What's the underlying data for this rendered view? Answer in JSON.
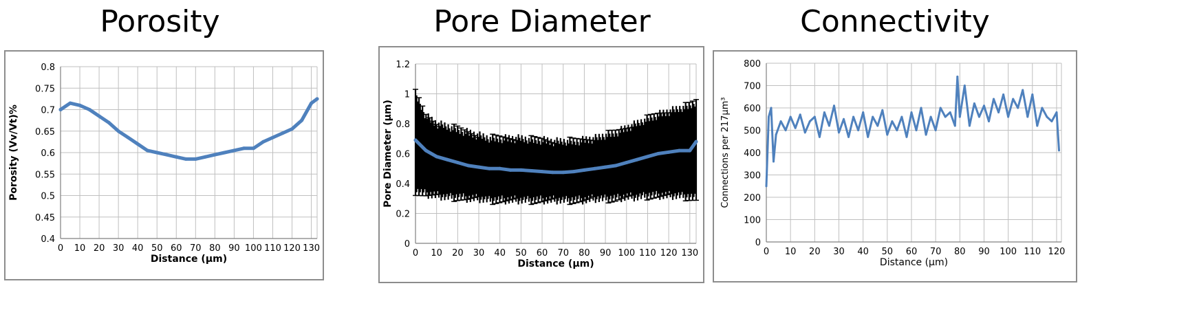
{
  "chart_data": [
    {
      "type": "line",
      "title": "Porosity",
      "xlabel": "Distance (µm)",
      "ylabel": "Porosity (Vv/Vt)%",
      "xlim": [
        0,
        133
      ],
      "ylim": [
        0.4,
        0.8
      ],
      "x_ticks": [
        "0",
        "10",
        "20",
        "30",
        "40",
        "50",
        "60",
        "70",
        "80",
        "90",
        "100",
        "110",
        "120",
        "130"
      ],
      "y_ticks": [
        "0.4",
        "0.45",
        "0.5",
        "0.55",
        "0.6",
        "0.65",
        "0.7",
        "0.75",
        "0.8"
      ],
      "grid": true,
      "series": [
        {
          "color": "#4f81bd",
          "x": [
            0,
            5,
            10,
            15,
            20,
            25,
            30,
            35,
            40,
            45,
            50,
            55,
            60,
            65,
            70,
            75,
            80,
            85,
            90,
            95,
            100,
            105,
            110,
            115,
            120,
            125,
            130,
            133
          ],
          "y": [
            0.7,
            0.715,
            0.71,
            0.7,
            0.685,
            0.67,
            0.65,
            0.635,
            0.62,
            0.605,
            0.6,
            0.595,
            0.59,
            0.585,
            0.585,
            0.59,
            0.595,
            0.6,
            0.605,
            0.61,
            0.61,
            0.625,
            0.635,
            0.645,
            0.655,
            0.675,
            0.715,
            0.725
          ]
        }
      ]
    },
    {
      "type": "line",
      "title": "Pore Diameter",
      "xlabel": "Distance (µm)",
      "ylabel": "Pore Diameter (µm)",
      "xlim": [
        0,
        133
      ],
      "ylim": [
        0,
        1.2
      ],
      "x_ticks": [
        "0",
        "10",
        "20",
        "30",
        "40",
        "50",
        "60",
        "70",
        "80",
        "90",
        "100",
        "110",
        "120",
        "130"
      ],
      "y_ticks": [
        "0",
        "0.2",
        "0.4",
        "0.6",
        "0.8",
        "1",
        "1.2"
      ],
      "grid": true,
      "error_bars": true,
      "series": [
        {
          "color": "#4f81bd",
          "x": [
            0,
            5,
            10,
            15,
            20,
            25,
            30,
            35,
            40,
            45,
            50,
            55,
            60,
            65,
            70,
            75,
            80,
            85,
            90,
            95,
            100,
            105,
            110,
            115,
            120,
            125,
            130,
            133
          ],
          "y": [
            0.69,
            0.62,
            0.58,
            0.56,
            0.54,
            0.52,
            0.51,
            0.5,
            0.5,
            0.49,
            0.49,
            0.485,
            0.48,
            0.475,
            0.475,
            0.48,
            0.49,
            0.5,
            0.51,
            0.52,
            0.54,
            0.56,
            0.58,
            0.6,
            0.61,
            0.62,
            0.62,
            0.68
          ],
          "error_low": [
            0.35,
            0.33,
            0.32,
            0.31,
            0.31,
            0.3,
            0.3,
            0.29,
            0.29,
            0.29,
            0.29,
            0.29,
            0.29,
            0.29,
            0.29,
            0.29,
            0.29,
            0.3,
            0.3,
            0.3,
            0.31,
            0.31,
            0.32,
            0.32,
            0.32,
            0.32,
            0.31,
            0.3
          ],
          "error_high": [
            1.0,
            0.85,
            0.8,
            0.78,
            0.76,
            0.74,
            0.72,
            0.7,
            0.7,
            0.7,
            0.7,
            0.69,
            0.69,
            0.68,
            0.68,
            0.68,
            0.69,
            0.7,
            0.72,
            0.74,
            0.77,
            0.8,
            0.83,
            0.86,
            0.88,
            0.9,
            0.92,
            0.95
          ]
        }
      ]
    },
    {
      "type": "line",
      "title": "Connectivity",
      "xlabel": "Distance (µm)",
      "ylabel": "Connections per 217µm³",
      "xlim": [
        0,
        122
      ],
      "ylim": [
        0,
        800
      ],
      "x_ticks": [
        "0",
        "10",
        "20",
        "30",
        "40",
        "50",
        "60",
        "70",
        "80",
        "90",
        "100",
        "110",
        "120"
      ],
      "y_ticks": [
        "0",
        "100",
        "200",
        "300",
        "400",
        "500",
        "600",
        "700",
        "800"
      ],
      "grid": true,
      "series": [
        {
          "color": "#4f81bd",
          "x": [
            0,
            1,
            2,
            3,
            4,
            6,
            8,
            10,
            12,
            14,
            16,
            18,
            20,
            22,
            24,
            26,
            28,
            30,
            32,
            34,
            36,
            38,
            40,
            42,
            44,
            46,
            48,
            50,
            52,
            54,
            56,
            58,
            60,
            62,
            64,
            66,
            68,
            70,
            72,
            74,
            76,
            78,
            79,
            80,
            82,
            84,
            86,
            88,
            90,
            92,
            94,
            96,
            98,
            100,
            102,
            104,
            106,
            108,
            110,
            112,
            114,
            116,
            118,
            120,
            121
          ],
          "y": [
            250,
            560,
            600,
            360,
            480,
            540,
            500,
            560,
            510,
            570,
            490,
            540,
            560,
            470,
            580,
            520,
            610,
            490,
            550,
            470,
            560,
            500,
            580,
            470,
            560,
            520,
            590,
            480,
            540,
            500,
            560,
            470,
            580,
            500,
            600,
            480,
            560,
            500,
            600,
            560,
            580,
            520,
            740,
            560,
            700,
            520,
            620,
            560,
            610,
            540,
            640,
            580,
            660,
            560,
            640,
            600,
            680,
            560,
            660,
            520,
            600,
            560,
            540,
            580,
            410
          ]
        }
      ]
    }
  ]
}
